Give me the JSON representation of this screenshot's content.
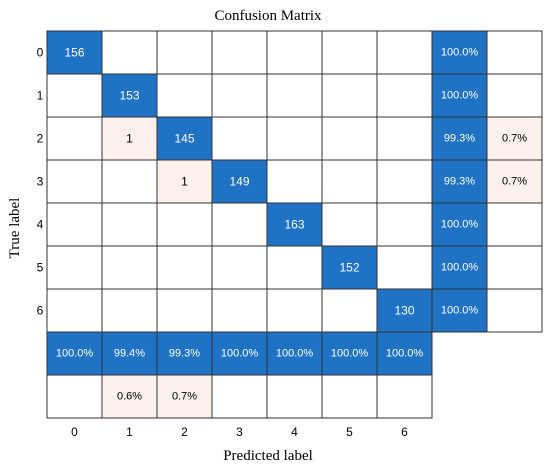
{
  "chart_data": {
    "type": "heatmap",
    "title": "Confusion Matrix",
    "xlabel": "Predicted label",
    "ylabel": "True label",
    "classes": [
      "0",
      "1",
      "2",
      "3",
      "4",
      "5",
      "6"
    ],
    "matrix": [
      [
        156,
        0,
        0,
        0,
        0,
        0,
        0
      ],
      [
        0,
        153,
        0,
        0,
        0,
        0,
        0
      ],
      [
        0,
        1,
        145,
        0,
        0,
        0,
        0
      ],
      [
        0,
        0,
        1,
        149,
        0,
        0,
        0
      ],
      [
        0,
        0,
        0,
        0,
        163,
        0,
        0
      ],
      [
        0,
        0,
        0,
        0,
        0,
        152,
        0
      ],
      [
        0,
        0,
        0,
        0,
        0,
        0,
        130
      ]
    ],
    "row_summary": [
      {
        "correct": "100.0%",
        "incorrect": ""
      },
      {
        "correct": "100.0%",
        "incorrect": ""
      },
      {
        "correct": "99.3%",
        "incorrect": "0.7%"
      },
      {
        "correct": "99.3%",
        "incorrect": "0.7%"
      },
      {
        "correct": "100.0%",
        "incorrect": ""
      },
      {
        "correct": "100.0%",
        "incorrect": ""
      },
      {
        "correct": "100.0%",
        "incorrect": ""
      }
    ],
    "column_summary": [
      {
        "correct": "100.0%",
        "incorrect": ""
      },
      {
        "correct": "99.4%",
        "incorrect": "0.6%"
      },
      {
        "correct": "99.3%",
        "incorrect": "0.7%"
      },
      {
        "correct": "100.0%",
        "incorrect": ""
      },
      {
        "correct": "100.0%",
        "incorrect": ""
      },
      {
        "correct": "100.0%",
        "incorrect": ""
      },
      {
        "correct": "100.0%",
        "incorrect": ""
      }
    ],
    "colors": {
      "diagonal": "#1f72c4",
      "summary_correct": "#1f72c4",
      "off_diagonal": "#fbf1ea",
      "empty": "#ffffff",
      "grid": "#333333"
    }
  }
}
